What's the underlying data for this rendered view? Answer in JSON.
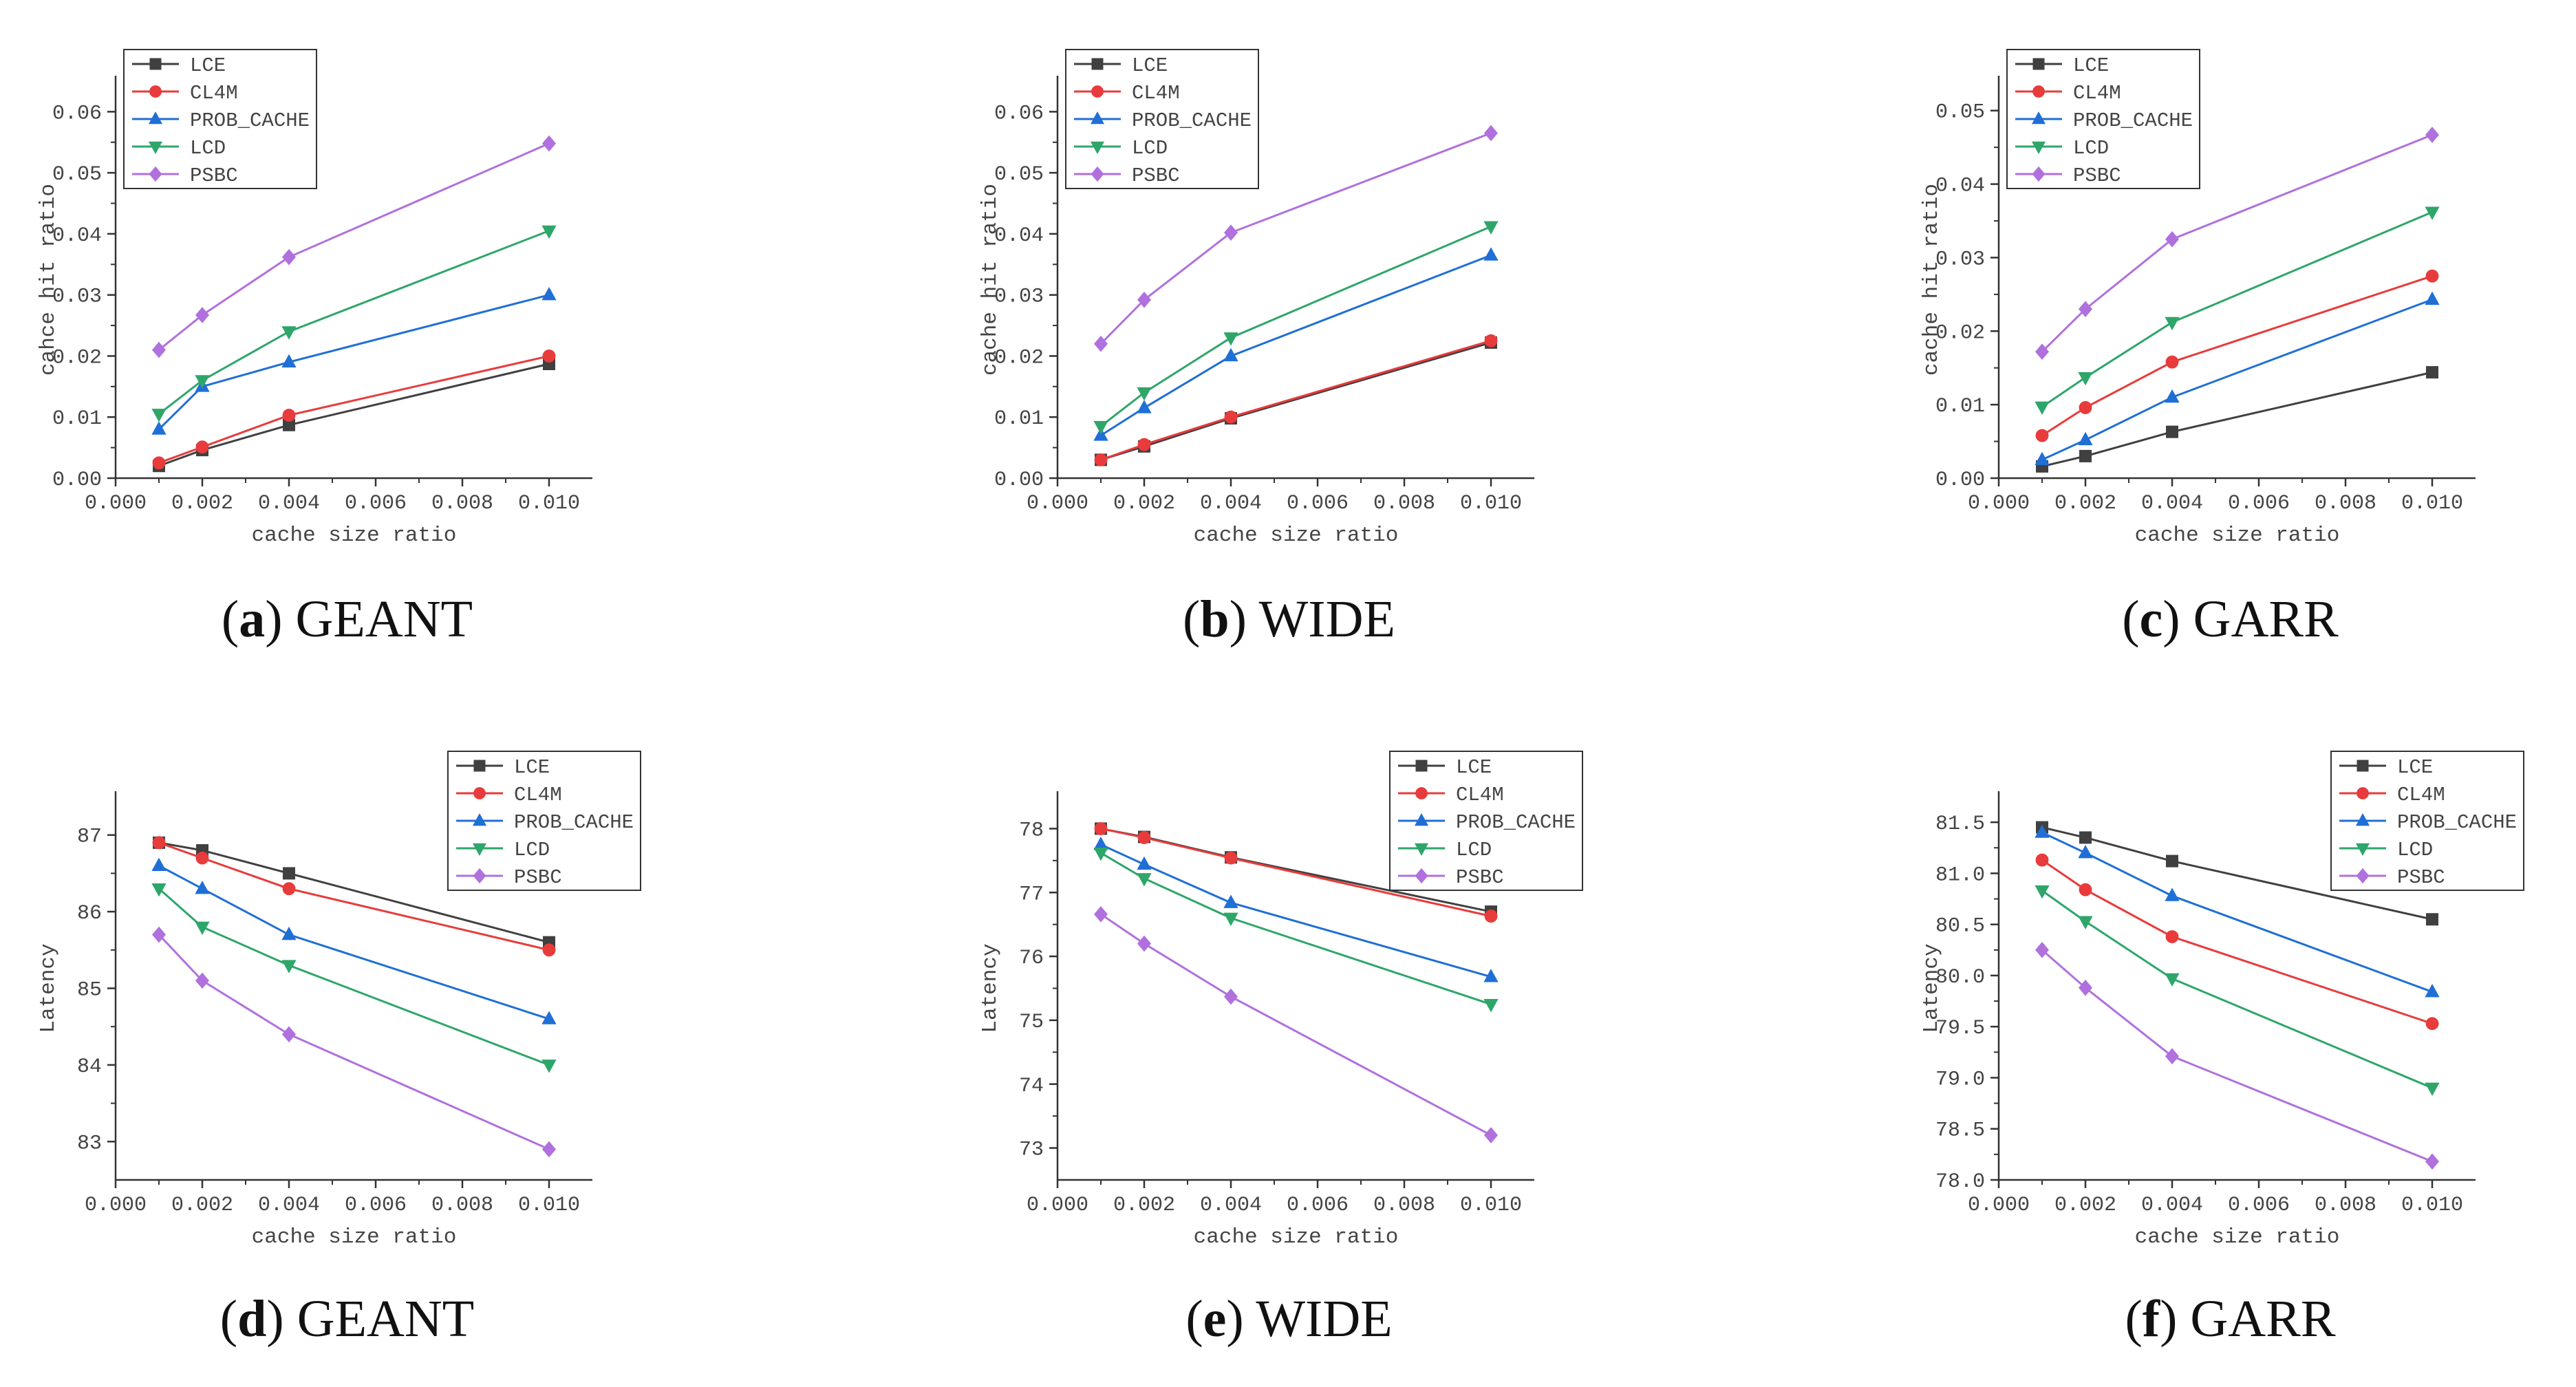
{
  "figure_caption": "",
  "chart_data": [
    {
      "panel": "a",
      "caption": {
        "letter": "a",
        "text": "GEANT"
      },
      "type": "line",
      "title": "",
      "xlabel": "cache size ratio",
      "ylabel": "cahce hit ratio",
      "xlim": [
        0,
        0.011
      ],
      "ylim": [
        0,
        0.065
      ],
      "xticks": [
        0,
        0.002,
        0.004,
        0.006,
        0.008,
        0.01
      ],
      "xtick_labels": [
        "0.000",
        "0.002",
        "0.004",
        "0.006",
        "0.008",
        "0.010"
      ],
      "yticks": [
        0,
        0.01,
        0.02,
        0.03,
        0.04,
        0.05,
        0.06
      ],
      "ytick_labels": [
        "0.00",
        "0.01",
        "0.02",
        "0.03",
        "0.04",
        "0.05",
        "0.06"
      ],
      "legend_position": "top-left",
      "x": [
        0.001,
        0.002,
        0.004,
        0.01
      ],
      "series": [
        {
          "name": "LCE",
          "color": "#404040",
          "marker": "square",
          "values": [
            0.002,
            0.0046,
            0.0087,
            0.0187
          ]
        },
        {
          "name": "CL4M",
          "color": "#e83b3b",
          "marker": "circle",
          "values": [
            0.0025,
            0.0051,
            0.0103,
            0.02
          ]
        },
        {
          "name": "PROB_CACHE",
          "color": "#1f6fd6",
          "marker": "triangle-up",
          "values": [
            0.008,
            0.015,
            0.019,
            0.03
          ]
        },
        {
          "name": "LCD",
          "color": "#2ea66a",
          "marker": "triangle-down",
          "values": [
            0.0105,
            0.016,
            0.024,
            0.0405
          ]
        },
        {
          "name": "PSBC",
          "color": "#b070dd",
          "marker": "diamond",
          "values": [
            0.021,
            0.0267,
            0.0362,
            0.0548
          ]
        }
      ]
    },
    {
      "panel": "b",
      "caption": {
        "letter": "b",
        "text": "WIDE"
      },
      "type": "line",
      "title": "",
      "xlabel": "cache size ratio",
      "ylabel": "cache hit ratio",
      "xlim": [
        0,
        0.011
      ],
      "ylim": [
        0,
        0.065
      ],
      "xticks": [
        0,
        0.002,
        0.004,
        0.006,
        0.008,
        0.01
      ],
      "xtick_labels": [
        "0.000",
        "0.002",
        "0.004",
        "0.006",
        "0.008",
        "0.010"
      ],
      "yticks": [
        0,
        0.01,
        0.02,
        0.03,
        0.04,
        0.05,
        0.06
      ],
      "ytick_labels": [
        "0.00",
        "0.01",
        "0.02",
        "0.03",
        "0.04",
        "0.05",
        "0.06"
      ],
      "legend_position": "top-left",
      "x": [
        0.001,
        0.002,
        0.004,
        0.01
      ],
      "series": [
        {
          "name": "LCE",
          "color": "#404040",
          "marker": "square",
          "values": [
            0.003,
            0.0052,
            0.0098,
            0.0222
          ]
        },
        {
          "name": "CL4M",
          "color": "#e83b3b",
          "marker": "circle",
          "values": [
            0.003,
            0.0055,
            0.01,
            0.0225
          ]
        },
        {
          "name": "PROB_CACHE",
          "color": "#1f6fd6",
          "marker": "triangle-up",
          "values": [
            0.007,
            0.0115,
            0.02,
            0.0365
          ]
        },
        {
          "name": "LCD",
          "color": "#2ea66a",
          "marker": "triangle-down",
          "values": [
            0.0085,
            0.014,
            0.023,
            0.0412
          ]
        },
        {
          "name": "PSBC",
          "color": "#b070dd",
          "marker": "diamond",
          "values": [
            0.022,
            0.0292,
            0.0402,
            0.0565
          ]
        }
      ]
    },
    {
      "panel": "c",
      "caption": {
        "letter": "c",
        "text": "GARR"
      },
      "type": "line",
      "title": "",
      "xlabel": "cache size ratio",
      "ylabel": "cache hit ratio",
      "xlim": [
        0,
        0.011
      ],
      "ylim": [
        0,
        0.054
      ],
      "xticks": [
        0,
        0.002,
        0.004,
        0.006,
        0.008,
        0.01
      ],
      "xtick_labels": [
        "0.000",
        "0.002",
        "0.004",
        "0.006",
        "0.008",
        "0.010"
      ],
      "yticks": [
        0,
        0.01,
        0.02,
        0.03,
        0.04,
        0.05
      ],
      "ytick_labels": [
        "0.00",
        "0.01",
        "0.02",
        "0.03",
        "0.04",
        "0.05"
      ],
      "legend_position": "top-left",
      "x": [
        0.001,
        0.002,
        0.004,
        0.01
      ],
      "series": [
        {
          "name": "LCE",
          "color": "#404040",
          "marker": "square",
          "values": [
            0.0016,
            0.003,
            0.0063,
            0.0144
          ]
        },
        {
          "name": "CL4M",
          "color": "#e83b3b",
          "marker": "circle",
          "values": [
            0.0058,
            0.0096,
            0.0158,
            0.0275
          ]
        },
        {
          "name": "PROB_CACHE",
          "color": "#1f6fd6",
          "marker": "triangle-up",
          "values": [
            0.0025,
            0.0052,
            0.011,
            0.0243
          ]
        },
        {
          "name": "LCD",
          "color": "#2ea66a",
          "marker": "triangle-down",
          "values": [
            0.0097,
            0.0137,
            0.0212,
            0.0362
          ]
        },
        {
          "name": "PSBC",
          "color": "#b070dd",
          "marker": "diamond",
          "values": [
            0.0172,
            0.023,
            0.0325,
            0.0467
          ]
        }
      ]
    },
    {
      "panel": "d",
      "caption": {
        "letter": "d",
        "text": "GEANT"
      },
      "type": "line",
      "title": "",
      "xlabel": "cache size ratio",
      "ylabel": "Latency",
      "xlim": [
        0,
        0.011
      ],
      "ylim": [
        82.5,
        87.5
      ],
      "xticks": [
        0,
        0.002,
        0.004,
        0.006,
        0.008,
        0.01
      ],
      "xtick_labels": [
        "0.000",
        "0.002",
        "0.004",
        "0.006",
        "0.008",
        "0.010"
      ],
      "yticks": [
        83,
        84,
        85,
        86,
        87
      ],
      "ytick_labels": [
        "83",
        "84",
        "85",
        "86",
        "87"
      ],
      "legend_position": "top-right",
      "x": [
        0.001,
        0.002,
        0.004,
        0.01
      ],
      "series": [
        {
          "name": "LCE",
          "color": "#404040",
          "marker": "square",
          "values": [
            86.9,
            86.8,
            86.5,
            85.6
          ]
        },
        {
          "name": "CL4M",
          "color": "#e83b3b",
          "marker": "circle",
          "values": [
            86.9,
            86.7,
            86.3,
            85.5
          ]
        },
        {
          "name": "PROB_CACHE",
          "color": "#1f6fd6",
          "marker": "triangle-up",
          "values": [
            86.6,
            86.3,
            85.7,
            84.6
          ]
        },
        {
          "name": "LCD",
          "color": "#2ea66a",
          "marker": "triangle-down",
          "values": [
            86.3,
            85.8,
            85.3,
            84.0
          ]
        },
        {
          "name": "PSBC",
          "color": "#b070dd",
          "marker": "diamond",
          "values": [
            85.7,
            85.1,
            84.4,
            82.9
          ]
        }
      ]
    },
    {
      "panel": "e",
      "caption": {
        "letter": "e",
        "text": "WIDE"
      },
      "type": "line",
      "title": "",
      "xlabel": "cache size ratio",
      "ylabel": "Latency",
      "xlim": [
        0,
        0.011
      ],
      "ylim": [
        72.5,
        78.5
      ],
      "xticks": [
        0,
        0.002,
        0.004,
        0.006,
        0.008,
        0.01
      ],
      "xtick_labels": [
        "0.000",
        "0.002",
        "0.004",
        "0.006",
        "0.008",
        "0.010"
      ],
      "yticks": [
        73,
        74,
        75,
        76,
        77,
        78
      ],
      "ytick_labels": [
        "73",
        "74",
        "75",
        "76",
        "77",
        "78"
      ],
      "legend_position": "top-right",
      "x": [
        0.001,
        0.002,
        0.004,
        0.01
      ],
      "series": [
        {
          "name": "LCE",
          "color": "#404040",
          "marker": "square",
          "values": [
            78.0,
            77.87,
            77.55,
            76.7
          ]
        },
        {
          "name": "CL4M",
          "color": "#e83b3b",
          "marker": "circle",
          "values": [
            78.0,
            77.86,
            77.54,
            76.63
          ]
        },
        {
          "name": "PROB_CACHE",
          "color": "#1f6fd6",
          "marker": "triangle-up",
          "values": [
            77.75,
            77.44,
            76.84,
            75.68
          ]
        },
        {
          "name": "LCD",
          "color": "#2ea66a",
          "marker": "triangle-down",
          "values": [
            77.62,
            77.22,
            76.6,
            75.25
          ]
        },
        {
          "name": "PSBC",
          "color": "#b070dd",
          "marker": "diamond",
          "values": [
            76.66,
            76.2,
            75.37,
            73.2
          ]
        }
      ]
    },
    {
      "panel": "f",
      "caption": {
        "letter": "f",
        "text": "GARR"
      },
      "type": "line",
      "title": "",
      "xlabel": "cache size ratio",
      "ylabel": "Latency",
      "xlim": [
        0,
        0.011
      ],
      "ylim": [
        78.0,
        81.75
      ],
      "xticks": [
        0,
        0.002,
        0.004,
        0.006,
        0.008,
        0.01
      ],
      "xtick_labels": [
        "0.000",
        "0.002",
        "0.004",
        "0.006",
        "0.008",
        "0.010"
      ],
      "yticks": [
        78.0,
        78.5,
        79.0,
        79.5,
        80.0,
        80.5,
        81.0,
        81.5
      ],
      "ytick_labels": [
        "78.0",
        "78.5",
        "79.0",
        "79.5",
        "80.0",
        "80.5",
        "81.0",
        "81.5"
      ],
      "legend_position": "top-right",
      "x": [
        0.001,
        0.002,
        0.004,
        0.01
      ],
      "series": [
        {
          "name": "LCE",
          "color": "#404040",
          "marker": "square",
          "values": [
            81.45,
            81.35,
            81.12,
            80.55
          ]
        },
        {
          "name": "CL4M",
          "color": "#e83b3b",
          "marker": "circle",
          "values": [
            81.13,
            80.84,
            80.38,
            79.53
          ]
        },
        {
          "name": "PROB_CACHE",
          "color": "#1f6fd6",
          "marker": "triangle-up",
          "values": [
            81.4,
            81.2,
            80.78,
            79.84
          ]
        },
        {
          "name": "LCD",
          "color": "#2ea66a",
          "marker": "triangle-down",
          "values": [
            80.83,
            80.53,
            79.97,
            78.9
          ]
        },
        {
          "name": "PSBC",
          "color": "#b070dd",
          "marker": "diamond",
          "values": [
            80.25,
            79.88,
            79.21,
            78.18
          ]
        }
      ]
    }
  ]
}
